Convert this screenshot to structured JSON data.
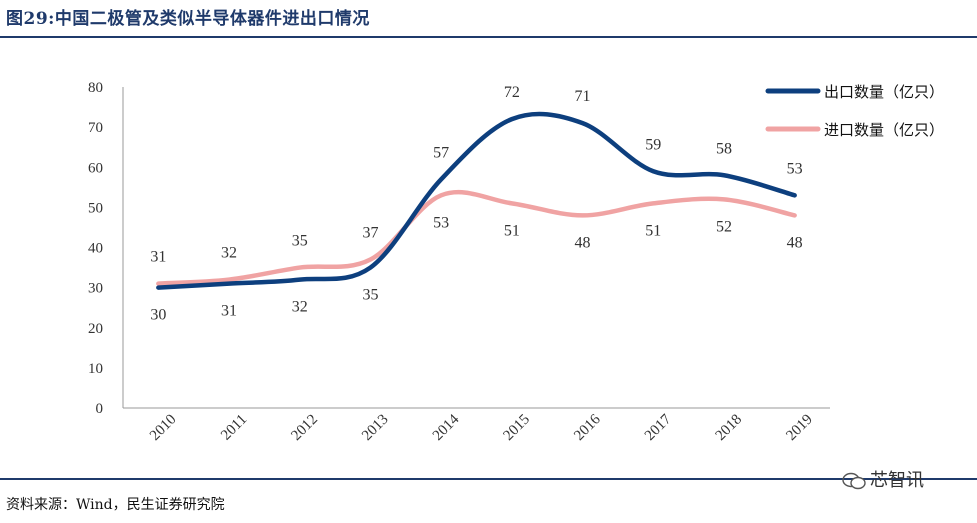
{
  "header": {
    "title": "图29:中国二极管及类似半导体器件进出口情况"
  },
  "footer": {
    "source": "资料来源：Wind，民生证券研究院",
    "watermark": "芯智讯"
  },
  "colors": {
    "export": "#0d3f7e",
    "import": "#f0a3a3",
    "accent": "#1f3a6b"
  },
  "chart_data": {
    "type": "line",
    "categories": [
      "2010",
      "2011",
      "2012",
      "2013",
      "2014",
      "2015",
      "2016",
      "2017",
      "2018",
      "2019"
    ],
    "series": [
      {
        "name": "出口数量（亿只）",
        "values": [
          30,
          31,
          32,
          35,
          57,
          72,
          71,
          59,
          58,
          53
        ]
      },
      {
        "name": "进口数量（亿只）",
        "values": [
          31,
          32,
          35,
          37,
          53,
          51,
          48,
          51,
          52,
          48
        ]
      }
    ],
    "ylim": [
      0,
      80
    ],
    "yticks": [
      "0",
      "10",
      "20",
      "30",
      "40",
      "50",
      "60",
      "70",
      "80"
    ],
    "grid": false,
    "legend": "top-right"
  }
}
